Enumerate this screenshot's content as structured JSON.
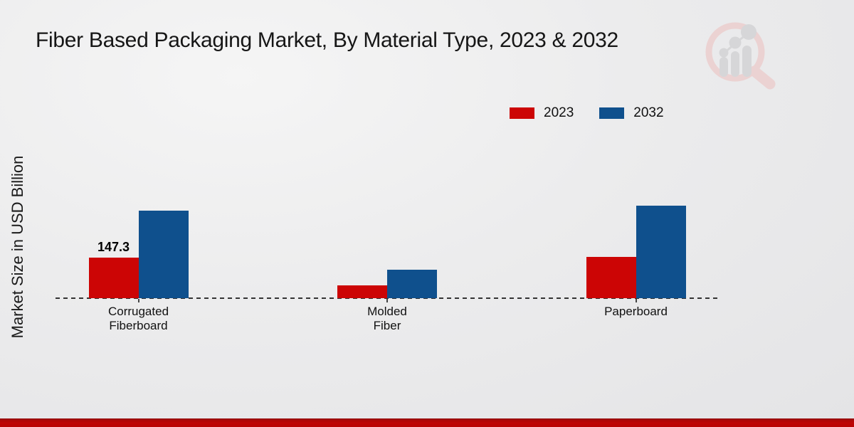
{
  "title": "Fiber Based Packaging Market, By Material Type, 2023 & 2032",
  "y_axis_label": "Market Size in USD Billion",
  "colors": {
    "series_2023": "#cc0505",
    "series_2032": "#0f508d",
    "footer_band": "#bf0505",
    "baseline": "#333333",
    "title_text": "#161616",
    "watermark_pink": "#ecd0d0",
    "watermark_gray": "#d4d4d6"
  },
  "legend": {
    "items": [
      {
        "label": "2023",
        "color": "#cc0505"
      },
      {
        "label": "2032",
        "color": "#0f508d"
      }
    ]
  },
  "watermark": {
    "name": "market-research-future-logo"
  },
  "chart_data": {
    "type": "bar",
    "title": "Fiber Based Packaging Market, By Material Type, 2023 & 2032",
    "xlabel": "",
    "ylabel": "Market Size in USD Billion",
    "categories": [
      "Corrugated Fiberboard",
      "Molded Fiber",
      "Paperboard"
    ],
    "category_display_lines": [
      [
        "Corrugated",
        "Fiberboard"
      ],
      [
        "Molded",
        "Fiber"
      ],
      [
        "Paperboard"
      ]
    ],
    "series": [
      {
        "name": "2023",
        "color": "#cc0505",
        "values": [
          147.3,
          47,
          148.6
        ]
      },
      {
        "name": "2032",
        "color": "#0f508d",
        "values": [
          318,
          103,
          336
        ]
      }
    ],
    "value_labels": [
      {
        "series_index": 0,
        "category_index": 0,
        "text": "147.3"
      }
    ],
    "ylim": [
      0,
      350
    ],
    "grid": false,
    "legend_position": "upper right",
    "baseline_style": "dashed"
  }
}
